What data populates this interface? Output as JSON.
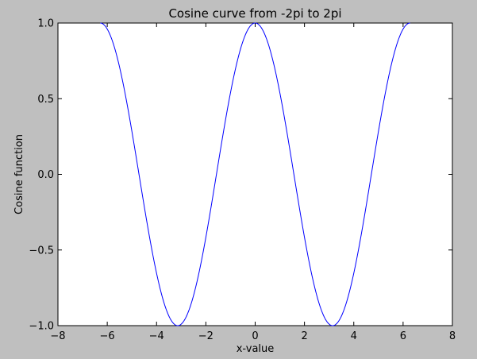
{
  "chart_data": {
    "type": "line",
    "title": "Cosine curve from -2pi to 2pi",
    "xlabel": "x-value",
    "ylabel": "Cosine function",
    "xlim": [
      -8,
      8
    ],
    "ylim": [
      -1.0,
      1.0
    ],
    "x_ticks": [
      "−8",
      "−6",
      "−4",
      "−2",
      "0",
      "2",
      "4",
      "6",
      "8"
    ],
    "y_ticks": [
      "1.0",
      "0.5",
      "0.0",
      "−0.5",
      "−1.0"
    ],
    "grid": false,
    "legend": "none",
    "series": [
      {
        "color": "#0000ff",
        "x_range": [
          -6.2832,
          6.2832
        ],
        "points": [
          [
            -6.2832,
            1.0
          ],
          [
            -5.5,
            0.709
          ],
          [
            -4.7124,
            0.0
          ],
          [
            -3.9,
            -0.726
          ],
          [
            -3.1416,
            -1.0
          ],
          [
            -2.4,
            -0.737
          ],
          [
            -1.5708,
            0.0
          ],
          [
            -0.8,
            0.697
          ],
          [
            0.0,
            1.0
          ],
          [
            0.8,
            0.697
          ],
          [
            1.5708,
            0.0
          ],
          [
            2.4,
            -0.737
          ],
          [
            3.1416,
            -1.0
          ],
          [
            3.9,
            -0.726
          ],
          [
            4.7124,
            0.0
          ],
          [
            5.5,
            0.709
          ],
          [
            6.2832,
            1.0
          ]
        ]
      }
    ]
  },
  "colors": {
    "figure_background": "#bfbfbf",
    "axes_background": "#ffffff",
    "line": "#0000ff"
  }
}
